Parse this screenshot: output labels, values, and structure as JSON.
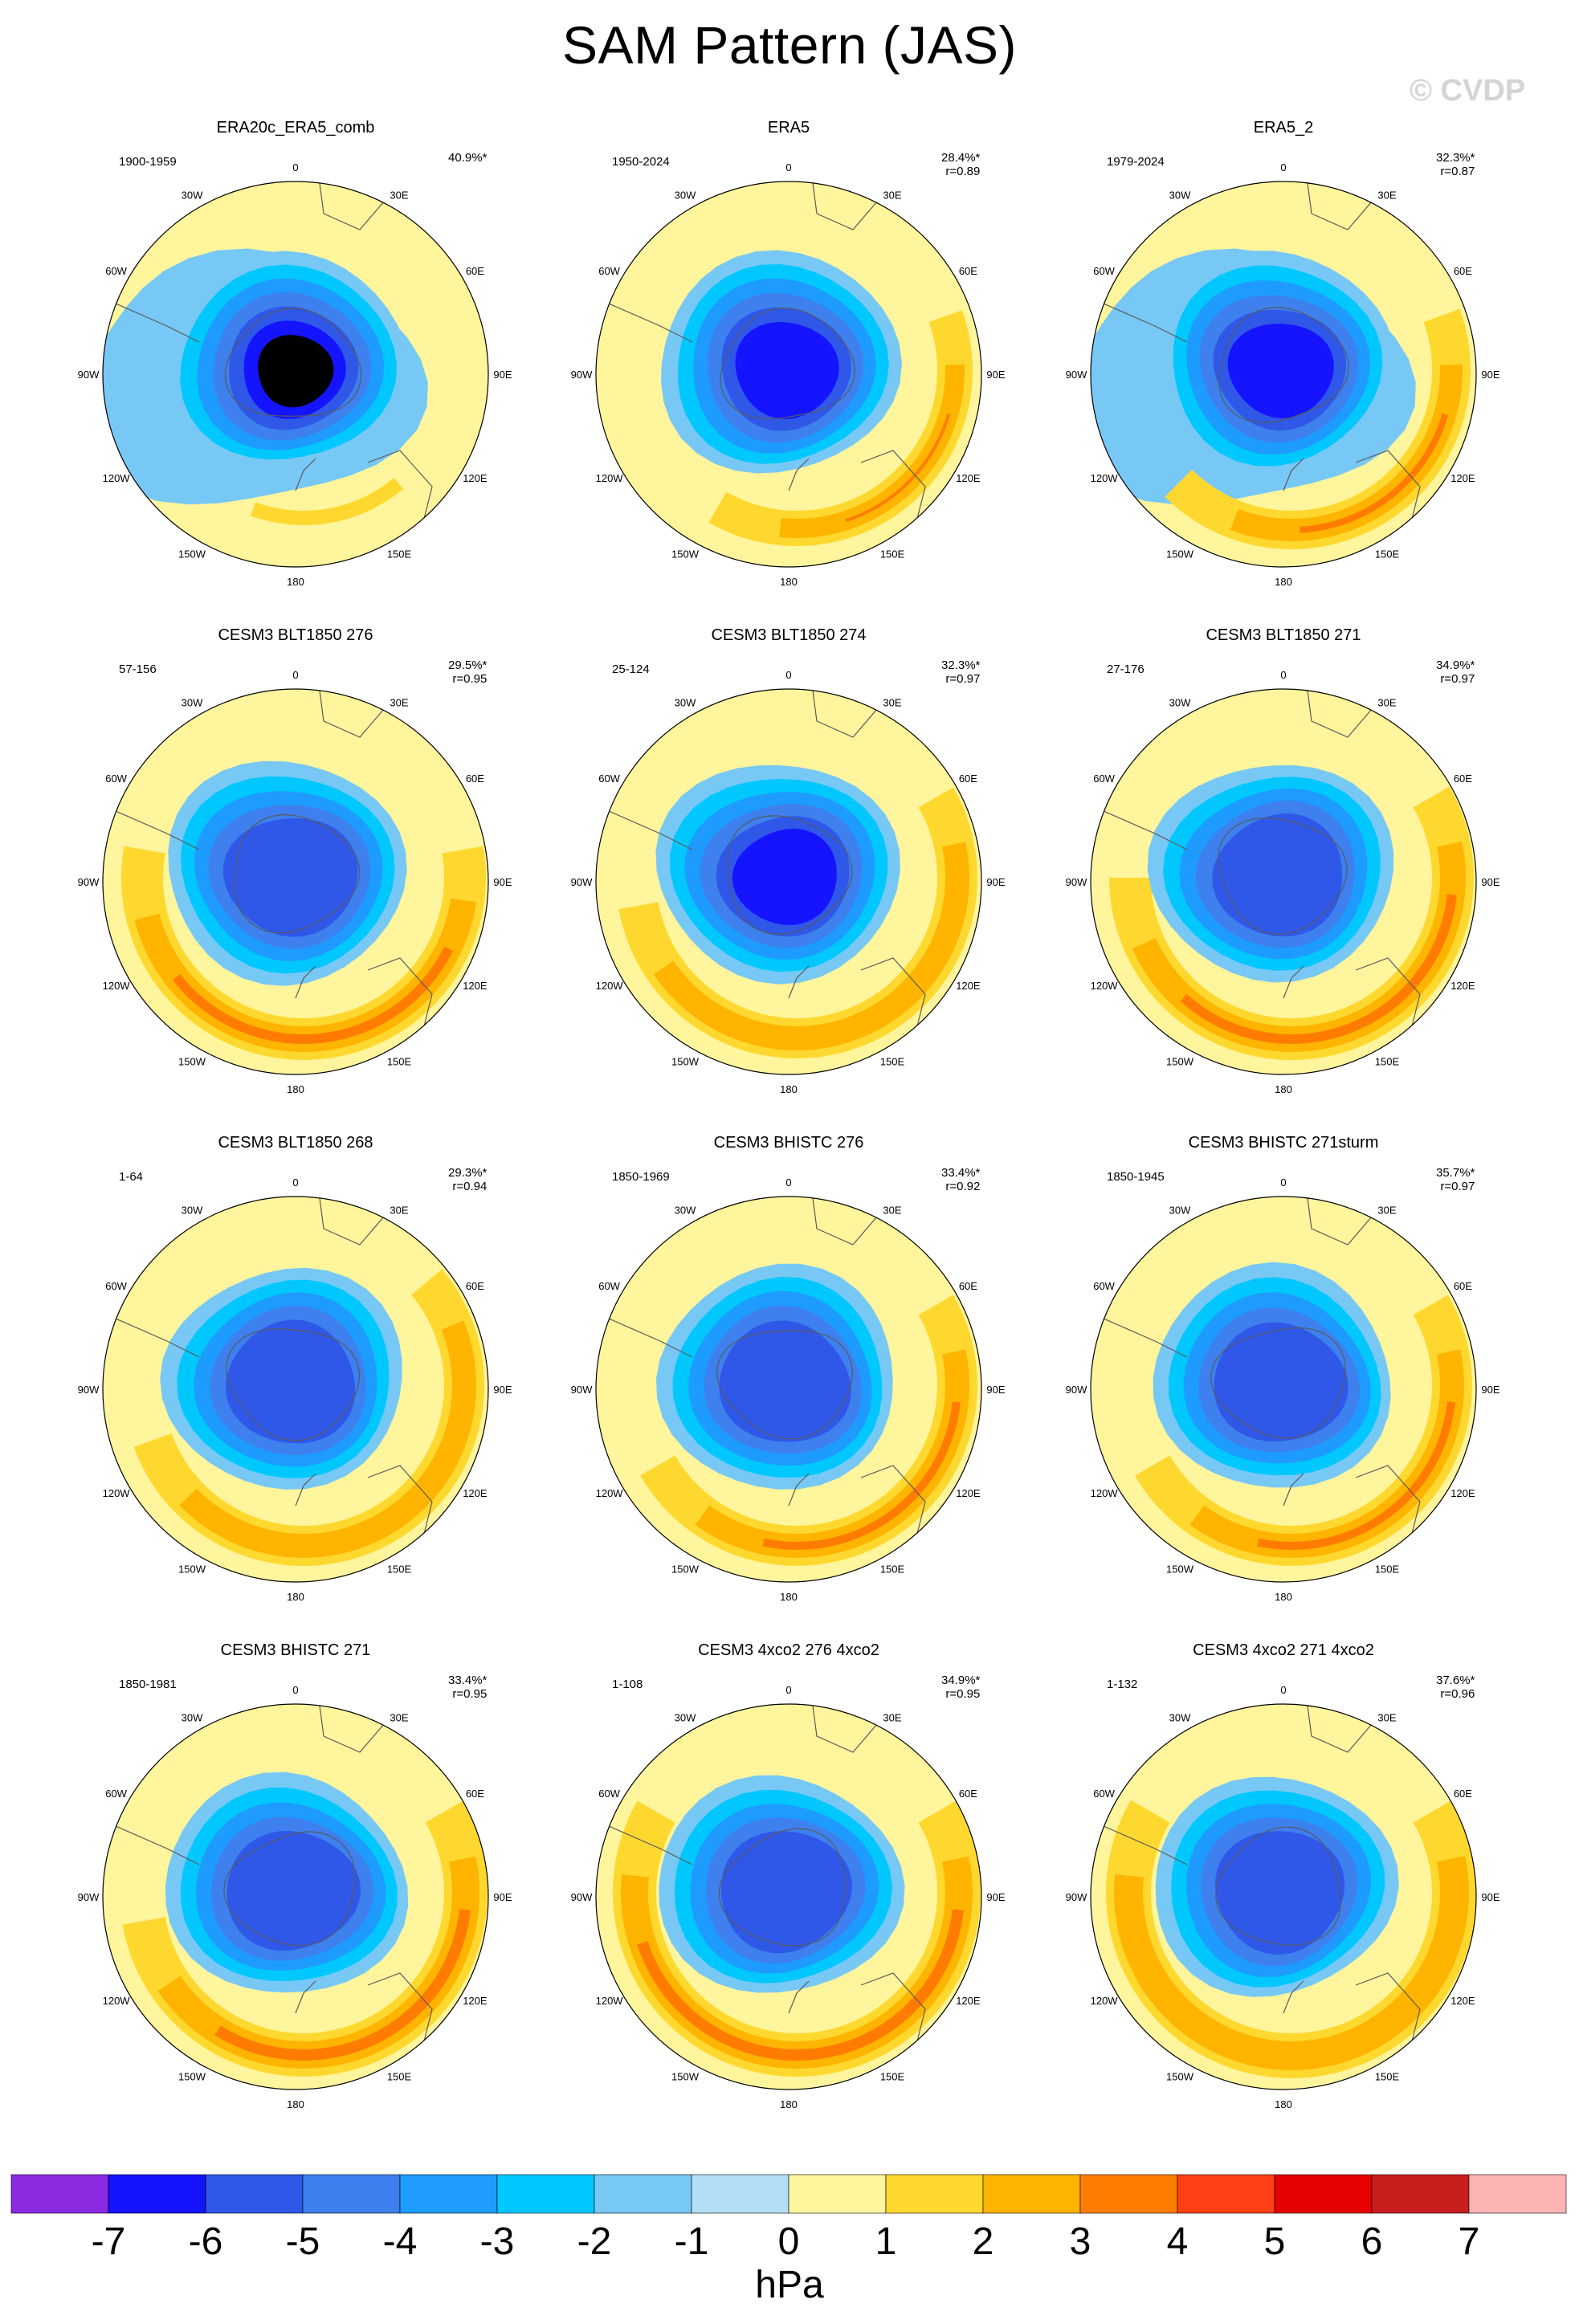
{
  "title": "SAM Pattern (JAS)",
  "watermark": "© CVDP",
  "panels": [
    {
      "title": "ERA20c_ERA5_comb",
      "period": "1900-1959",
      "pct": "40.9%*",
      "r": ""
    },
    {
      "title": "ERA5",
      "period": "1950-2024",
      "pct": "28.4%*",
      "r": "r=0.89"
    },
    {
      "title": "ERA5_2",
      "period": "1979-2024",
      "pct": "32.3%*",
      "r": "r=0.87"
    },
    {
      "title": "CESM3 BLT1850 276",
      "period": "57-156",
      "pct": "29.5%*",
      "r": "r=0.95"
    },
    {
      "title": "CESM3 BLT1850 274",
      "period": "25-124",
      "pct": "32.3%*",
      "r": "r=0.97"
    },
    {
      "title": "CESM3 BLT1850 271",
      "period": "27-176",
      "pct": "34.9%*",
      "r": "r=0.97"
    },
    {
      "title": "CESM3 BLT1850 268",
      "period": "1-64",
      "pct": "29.3%*",
      "r": "r=0.94"
    },
    {
      "title": "CESM3 BHISTC 276",
      "period": "1850-1969",
      "pct": "33.4%*",
      "r": "r=0.92"
    },
    {
      "title": "CESM3 BHISTC 271sturm",
      "period": "1850-1945",
      "pct": "35.7%*",
      "r": "r=0.97"
    },
    {
      "title": "CESM3 BHISTC 271",
      "period": "1850-1981",
      "pct": "33.4%*",
      "r": "r=0.95"
    },
    {
      "title": "CESM3 4xco2 276 4xco2",
      "period": "1-108",
      "pct": "34.9%*",
      "r": "r=0.95"
    },
    {
      "title": "CESM3 4xco2 271 4xco2",
      "period": "1-132",
      "pct": "37.6%*",
      "r": "r=0.96"
    }
  ],
  "lon_labels": [
    "0",
    "30E",
    "60E",
    "90E",
    "120E",
    "150E",
    "180",
    "150W",
    "120W",
    "90W",
    "60W",
    "30W"
  ],
  "colorbar": {
    "colors": [
      "#8a2be2",
      "#1414ff",
      "#2f57e8",
      "#3d80ee",
      "#1e9bff",
      "#00c8ff",
      "#78c8f5",
      "#b4def5",
      "#fff59c",
      "#ffd82f",
      "#ffb400",
      "#ff7c00",
      "#ff3f14",
      "#e60000",
      "#c81e1e",
      "#ffb4b4"
    ],
    "labels": [
      "-7",
      "-6",
      "-5",
      "-4",
      "-3",
      "-2",
      "-1",
      "0",
      "1",
      "2",
      "3",
      "4",
      "5",
      "6",
      "7"
    ],
    "units": "hPa"
  }
}
